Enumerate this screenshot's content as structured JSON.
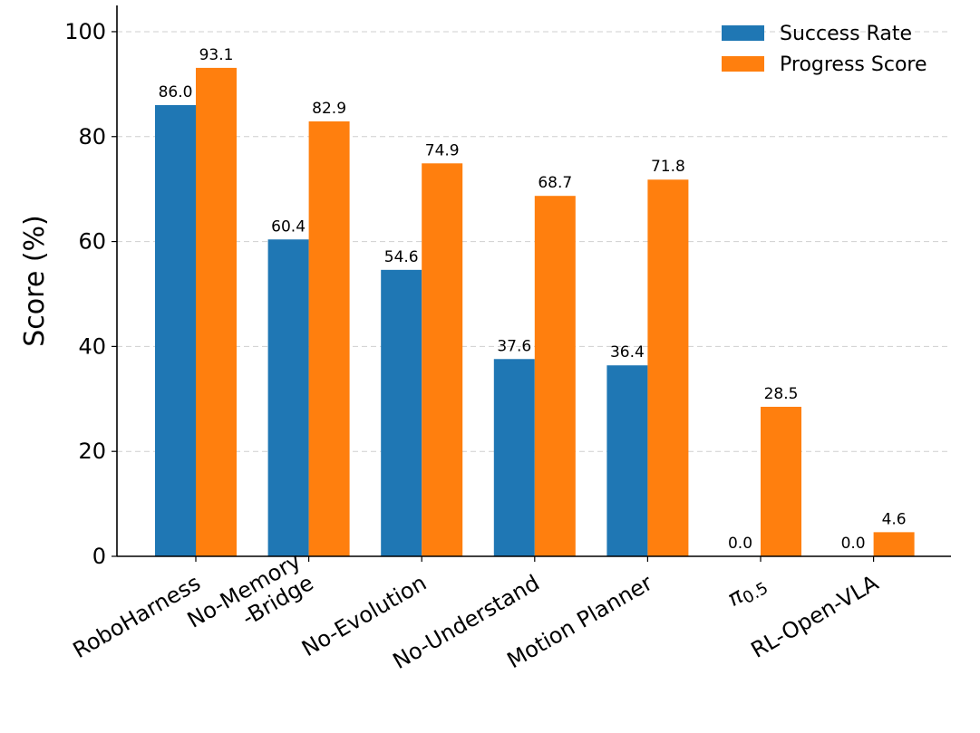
{
  "chart_data": {
    "type": "bar",
    "categories": [
      "RoboHarness",
      "No-Memory\n-Bridge",
      "No-Evolution",
      "No-Understand",
      "Motion Planner",
      "π0.5",
      "RL-Open-VLA"
    ],
    "series": [
      {
        "name": "Success Rate",
        "values": [
          86.0,
          60.4,
          54.6,
          37.6,
          36.4,
          0.0,
          0.0
        ],
        "color": "#1f77b4"
      },
      {
        "name": "Progress Score",
        "values": [
          93.1,
          82.9,
          74.9,
          68.7,
          71.8,
          28.5,
          4.6
        ],
        "color": "#ff7f0e"
      }
    ],
    "data_labels": [
      [
        "86.0",
        "60.4",
        "54.6",
        "37.6",
        "36.4",
        "0.0",
        "0.0"
      ],
      [
        "93.1",
        "82.9",
        "74.9",
        "68.7",
        "71.8",
        "28.5",
        "4.6"
      ]
    ],
    "title": "",
    "xlabel": "",
    "ylabel": "Score (%)",
    "ylim": [
      0,
      105
    ],
    "yticks": [
      0,
      20,
      40,
      60,
      80,
      100
    ],
    "grid": "y-dashed",
    "legend_position": "top-right"
  }
}
